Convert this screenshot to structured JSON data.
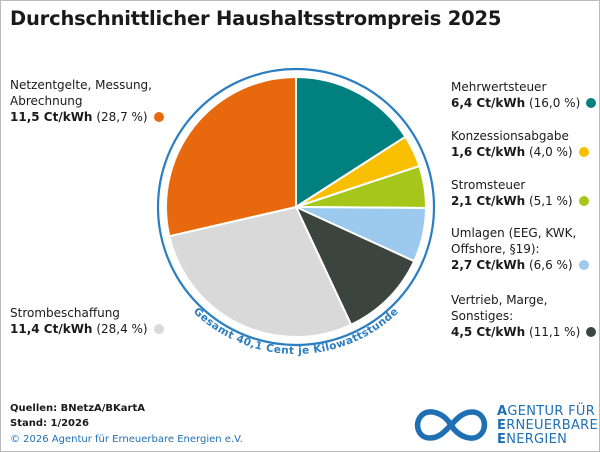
{
  "title": "Durchschnittlicher Haushaltsstrompreis 2025",
  "chart_data": {
    "type": "pie",
    "title": "Durchschnittlicher Haushaltsstrompreis 2025",
    "unit": "Ct/kWh",
    "total_label": "Gesamt 40,1 Cent je Kilowattstunde",
    "slices": [
      {
        "name": "Mehrwertsteuer",
        "value": 6.4,
        "value_label": "6,4 Ct/kWh",
        "pct": 16.0,
        "pct_label": "(16,0 %)",
        "color": "#00807e"
      },
      {
        "name": "Konzessionsabgabe",
        "value": 1.6,
        "value_label": "1,6 Ct/kWh",
        "pct": 4.0,
        "pct_label": "(4,0 %)",
        "color": "#f8be00"
      },
      {
        "name": "Stromsteuer",
        "value": 2.1,
        "value_label": "2,1 Ct/kWh",
        "pct": 5.1,
        "pct_label": "(5,1 %)",
        "color": "#a7c61c"
      },
      {
        "name": "Umlagen (EEG, KWK,\nOffshore, §19):",
        "value": 2.7,
        "value_label": "2,7 Ct/kWh",
        "pct": 6.6,
        "pct_label": "(6,6 %)",
        "color": "#9ccaee"
      },
      {
        "name": "Vertrieb, Marge,\nSonstiges:",
        "value": 4.5,
        "value_label": "4,5 Ct/kWh",
        "pct": 11.1,
        "pct_label": "(11,1 %)",
        "color": "#3c4440"
      },
      {
        "name": "Strombeschaffung",
        "value": 11.4,
        "value_label": "11,4 Ct/kWh",
        "pct": 28.4,
        "pct_label": "(28,4 %)",
        "color": "#d9d9d9"
      },
      {
        "name": "Netzentgelte, Messung,\nAbrechnung",
        "value": 11.5,
        "value_label": "11,5 Ct/kWh",
        "pct": 28.7,
        "pct_label": "(28,7 %)",
        "color": "#e8690d"
      }
    ]
  },
  "ring_color": "#2b7ec1",
  "footer": {
    "sources": "Quellen: BNetzA/BKartA",
    "stand": "Stand: 1/2026",
    "copyright": "© 2026 Agentur für Erneuerbare Energien e.V."
  },
  "logo": {
    "line1_initial": "A",
    "line1_rest": "GENTUR FÜR",
    "line2_initial": "E",
    "line2_rest": "RNEUERBARE",
    "line3_initial": "E",
    "line3_rest": "NERGIEN",
    "icon": "infinity-icon",
    "color": "#1f6fb3"
  }
}
